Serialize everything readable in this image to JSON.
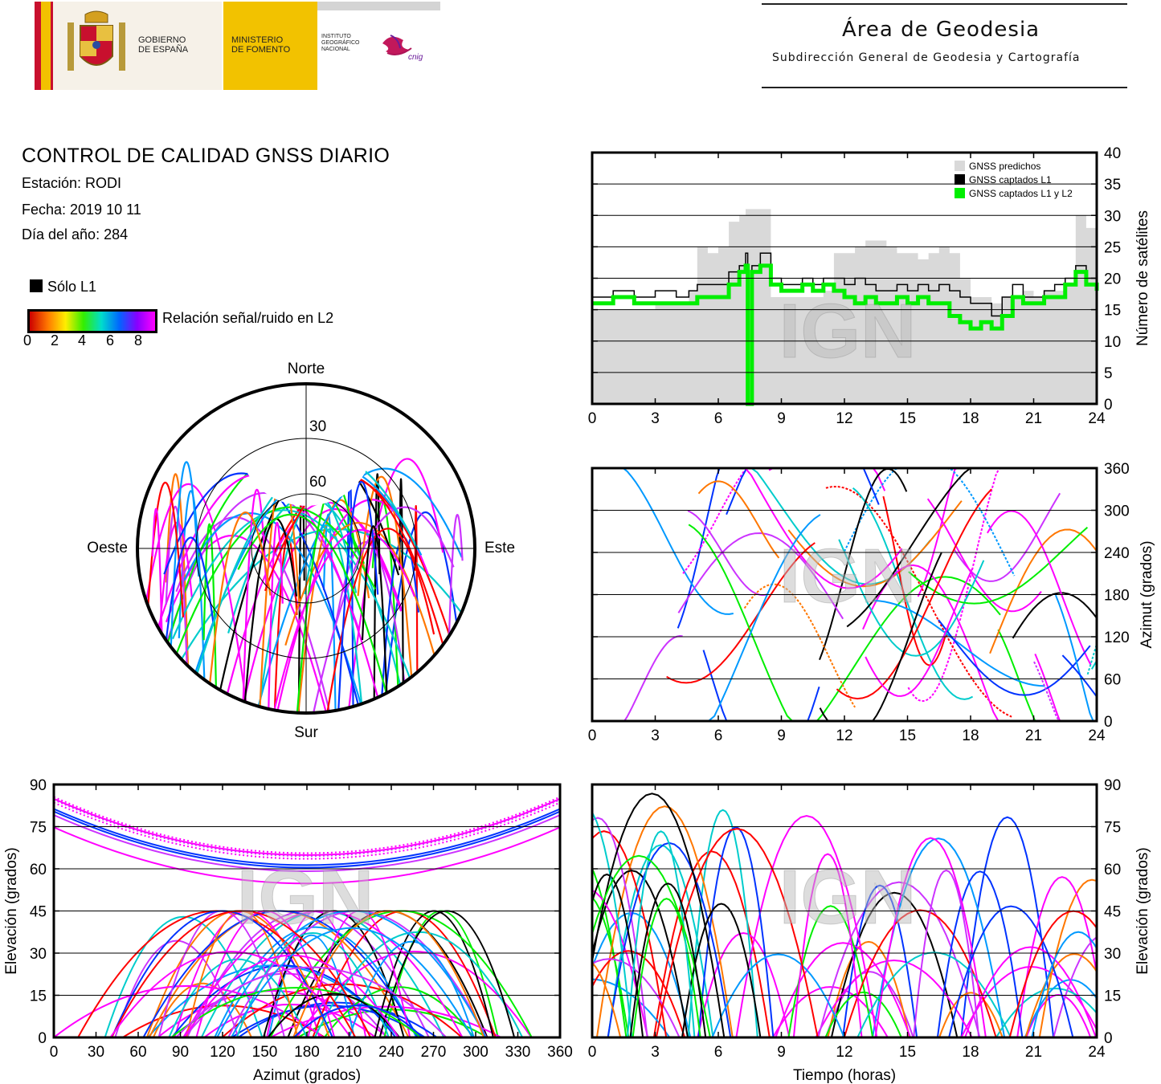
{
  "header": {
    "gov_line1": "GOBIERNO",
    "gov_line2": "DE ESPAÑA",
    "min_line1": "MINISTERIO",
    "min_line2": "DE FOMENTO",
    "ign_line1": "INSTITUTO",
    "ign_line2": "GEOGRÁFICO",
    "ign_line3": "NACIONAL",
    "cnig_logo": "cnig",
    "area_title": "Área de Geodesia",
    "area_subtitle": "Subdirección General de Geodesia y Cartografía"
  },
  "info": {
    "title": "CONTROL DE CALIDAD GNSS DIARIO",
    "station": "Estación: RODI",
    "date": "Fecha: 2019 10 11",
    "doy": "Día del año: 284"
  },
  "legend": {
    "l1_only": "Sólo L1",
    "snr_label": "Relación señal/ruido en L2",
    "snr_ticks": [
      "0",
      "2",
      "4",
      "6",
      "8"
    ],
    "snr_colors": [
      "#cc0000",
      "#ff7700",
      "#ffee00",
      "#33ee00",
      "#00ddcc",
      "#0066ff",
      "#8800ff",
      "#ff00ff"
    ]
  },
  "watermark": "IGN",
  "chart_data": [
    {
      "type": "area",
      "id": "satellites",
      "xlabel": "",
      "ylabel": "Número de satélites",
      "xlim": [
        0,
        24
      ],
      "ylim": [
        0,
        40
      ],
      "xticks": [
        "0",
        "3",
        "6",
        "9",
        "12",
        "15",
        "18",
        "21",
        "24"
      ],
      "yticks": [
        "0",
        "5",
        "10",
        "15",
        "20",
        "25",
        "30",
        "35",
        "40"
      ],
      "grid": true,
      "legend_position": "top-right",
      "series": [
        {
          "name": "GNSS predichos",
          "color": "#d9d9d9",
          "x": [
            0,
            1,
            2,
            3,
            4,
            4.6,
            5,
            5.5,
            6,
            6.5,
            7,
            7.3,
            7.6,
            8,
            8.5,
            9,
            9.5,
            10,
            10.5,
            11,
            11.5,
            12,
            12.5,
            13,
            13.5,
            14,
            14.5,
            15,
            15.5,
            16,
            16.5,
            17,
            17.5,
            18,
            18.5,
            19,
            19.5,
            20,
            20.5,
            21,
            21.5,
            22,
            22.5,
            23,
            23.5,
            24
          ],
          "y": [
            15,
            15,
            15,
            16,
            16,
            18,
            25,
            24,
            25,
            29,
            30,
            31,
            31,
            31,
            17,
            17,
            17,
            17,
            17,
            18,
            24,
            24,
            25,
            26,
            26,
            25,
            24,
            24,
            23,
            24,
            25,
            24,
            20,
            17,
            17,
            16,
            17,
            17,
            18,
            17,
            18,
            18,
            19,
            30,
            28,
            25
          ]
        },
        {
          "name": "GNSS captados L1",
          "color": "#000000",
          "x": [
            0,
            1,
            2,
            3,
            4,
            4.6,
            5,
            5.5,
            6,
            6.5,
            7,
            7.3,
            7.4,
            7.6,
            8,
            8.5,
            9,
            9.5,
            10,
            10.5,
            11,
            11.5,
            12,
            12.5,
            13,
            13.5,
            14,
            14.5,
            15,
            15.5,
            16,
            16.5,
            17,
            17.5,
            18,
            18.5,
            19,
            19.5,
            20,
            20.5,
            21,
            21.5,
            22,
            22.5,
            23,
            23.5,
            24
          ],
          "y": [
            17,
            18,
            17,
            18,
            17,
            18,
            19,
            19,
            19,
            21,
            22,
            24,
            0,
            22,
            24,
            20,
            19,
            19,
            20,
            19,
            20,
            20,
            19,
            20,
            19,
            18,
            18,
            19,
            18,
            19,
            18,
            19,
            18,
            17,
            16,
            16,
            14,
            17,
            19,
            17,
            17,
            18,
            19,
            20,
            22,
            20,
            19
          ]
        },
        {
          "name": "GNSS captados L1 y L2",
          "color": "#00ee00",
          "x": [
            0,
            1,
            2,
            3,
            4,
            4.6,
            5,
            5.5,
            6,
            6.5,
            7,
            7.3,
            7.4,
            7.6,
            8,
            8.5,
            9,
            9.5,
            10,
            10.5,
            11,
            11.5,
            12,
            12.5,
            13,
            13.5,
            14,
            14.5,
            15,
            15.5,
            16,
            16.5,
            17,
            17.5,
            18,
            18.5,
            19,
            19.5,
            20,
            20.5,
            21,
            21.5,
            22,
            22.5,
            23,
            23.5,
            24
          ],
          "y": [
            16,
            17,
            16,
            16,
            16,
            16,
            17,
            17,
            17,
            19,
            21,
            22,
            0,
            21,
            22,
            19,
            18,
            18,
            19,
            18,
            19,
            18,
            17,
            16,
            17,
            16,
            16,
            17,
            16,
            17,
            16,
            16,
            14,
            13,
            12,
            13,
            12,
            14,
            17,
            16,
            16,
            17,
            17,
            19,
            21,
            19,
            18
          ]
        }
      ]
    },
    {
      "type": "scatter",
      "id": "azimuth-time",
      "xlabel": "",
      "ylabel": "Azimut (grados)",
      "xlim": [
        0,
        24
      ],
      "ylim": [
        0,
        360
      ],
      "xticks": [
        "0",
        "3",
        "6",
        "9",
        "12",
        "15",
        "18",
        "21",
        "24"
      ],
      "yticks": [
        "0",
        "60",
        "120",
        "180",
        "240",
        "300",
        "360"
      ],
      "grid": true
    },
    {
      "type": "polar",
      "id": "skyplot",
      "labels": {
        "north": "Norte",
        "south": "Sur",
        "east": "Este",
        "west": "Oeste"
      },
      "rings": [
        "30",
        "60"
      ]
    },
    {
      "type": "scatter",
      "id": "elevation-azimuth",
      "xlabel": "Azimut (grados)",
      "ylabel": "Elevación (grados)",
      "xlim": [
        0,
        360
      ],
      "ylim": [
        0,
        90
      ],
      "xticks": [
        "0",
        "30",
        "60",
        "90",
        "120",
        "150",
        "180",
        "210",
        "240",
        "270",
        "300",
        "330",
        "360"
      ],
      "yticks": [
        "0",
        "15",
        "30",
        "45",
        "60",
        "75",
        "90"
      ],
      "grid": true
    },
    {
      "type": "line",
      "id": "elevation-time",
      "xlabel": "Tiempo (horas)",
      "ylabel": "Elevación (grados)",
      "xlim": [
        0,
        24
      ],
      "ylim": [
        0,
        90
      ],
      "xticks": [
        "0",
        "3",
        "6",
        "9",
        "12",
        "15",
        "18",
        "21",
        "24"
      ],
      "yticks": [
        "0",
        "15",
        "30",
        "45",
        "60",
        "75",
        "90"
      ],
      "grid": true
    }
  ]
}
